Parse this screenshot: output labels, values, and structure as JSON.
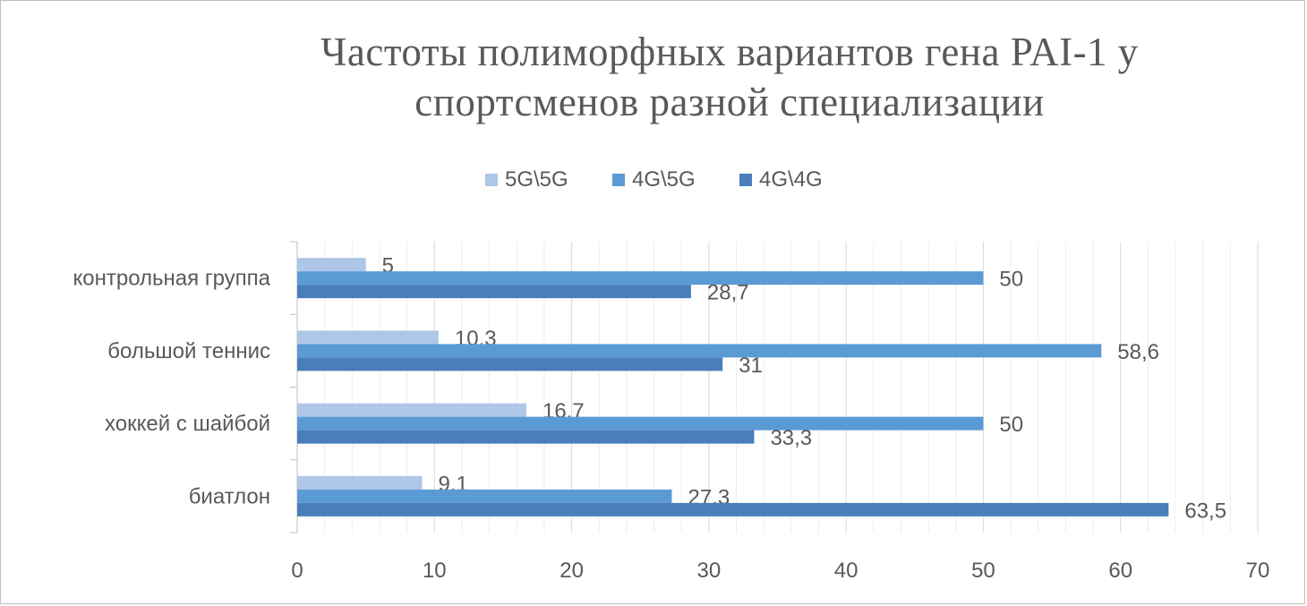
{
  "chart_data": {
    "type": "bar",
    "orientation": "horizontal",
    "title_lines": [
      "Частоты полиморфных вариантов гена PAI-1 у",
      "спортсменов разной специализации"
    ],
    "categories": [
      "биатлон",
      "хоккей с шайбой",
      "большой теннис",
      "контрольная группа"
    ],
    "series": [
      {
        "name": "5G\\5G",
        "color": "#aec6e8",
        "values": [
          9.1,
          16.7,
          10.3,
          5
        ],
        "labels": [
          "9,1",
          "16,7",
          "10,3",
          "5"
        ]
      },
      {
        "name": "4G\\5G",
        "color": "#5b9bd5",
        "values": [
          27.3,
          50,
          58.6,
          50
        ],
        "labels": [
          "27,3",
          "50",
          "58,6",
          "50"
        ]
      },
      {
        "name": "4G\\4G",
        "color": "#4a7ebb",
        "values": [
          63.5,
          33.3,
          31,
          28.7
        ],
        "labels": [
          "63,5",
          "33,3",
          "31",
          "28,7"
        ]
      }
    ],
    "xlim": [
      0,
      70
    ],
    "xticks": [
      "0",
      "10",
      "20",
      "30",
      "40",
      "50",
      "60",
      "70"
    ],
    "legend_position": "top",
    "grid": "vertical"
  }
}
